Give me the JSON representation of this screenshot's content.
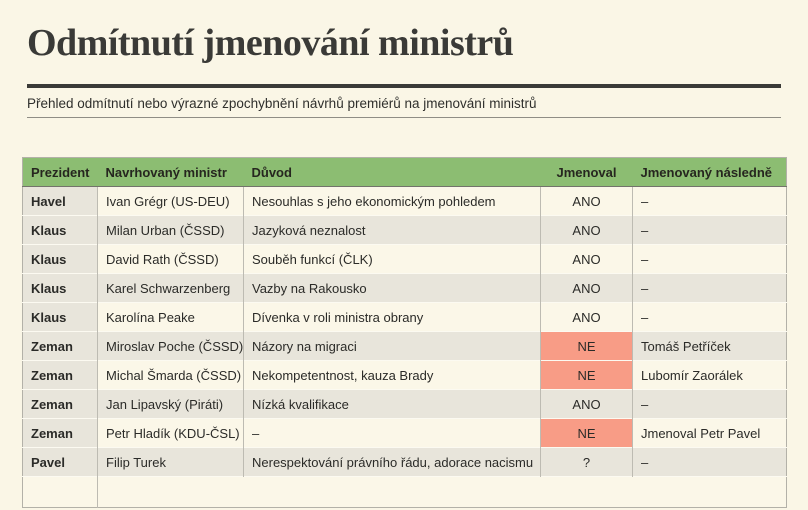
{
  "page": {
    "title": "Odmítnutí jmenování ministrů",
    "subtitle": "Přehled odmítnutí nebo výrazné zpochybnění návrhů premiérů na jmenování ministrů"
  },
  "colors": {
    "background": "#FAF6E6",
    "title_text": "#3A3A37",
    "header_green": "#8CBD72",
    "row_gray": "#E8E5DB",
    "row_cream": "#FBF7E8",
    "refused_red": "#F89C86"
  },
  "table": {
    "columns": [
      "Prezident",
      "Navrhovaný ministr",
      "Důvod",
      "Jmenoval",
      "Jmenovaný následně"
    ],
    "rows": [
      {
        "president": "Havel",
        "minister": "Ivan Grégr (US-DEU)",
        "reason": "Nesouhlas s jeho ekonomickým pohledem",
        "appointed": "ANO",
        "refused": false,
        "successor": "–"
      },
      {
        "president": "Klaus",
        "minister": "Milan Urban (ČSSD)",
        "reason": "Jazyková neznalost",
        "appointed": "ANO",
        "refused": false,
        "successor": "–"
      },
      {
        "president": "Klaus",
        "minister": "David Rath (ČSSD)",
        "reason": "Souběh funkcí (ČLK)",
        "appointed": "ANO",
        "refused": false,
        "successor": "–"
      },
      {
        "president": "Klaus",
        "minister": "Karel Schwarzenberg",
        "reason": "Vazby na Rakousko",
        "appointed": "ANO",
        "refused": false,
        "successor": "–"
      },
      {
        "president": "Klaus",
        "minister": "Karolína Peake",
        "reason": "Dívenka v roli ministra obrany",
        "appointed": "ANO",
        "refused": false,
        "successor": "–"
      },
      {
        "president": "Zeman",
        "minister": "Miroslav Poche (ČSSD)",
        "reason": "Názory na migraci",
        "appointed": "NE",
        "refused": true,
        "successor": "Tomáš Petříček"
      },
      {
        "president": "Zeman",
        "minister": "Michal Šmarda (ČSSD)",
        "reason": "Nekompetentnost, kauza Brady",
        "appointed": "NE",
        "refused": true,
        "successor": "Lubomír Zaorálek"
      },
      {
        "president": "Zeman",
        "minister": "Jan Lipavský (Piráti)",
        "reason": "Nízká kvalifikace",
        "appointed": "ANO",
        "refused": false,
        "successor": "–"
      },
      {
        "president": "Zeman",
        "minister": "Petr Hladík (KDU-ČSL)",
        "reason": "–",
        "appointed": "NE",
        "refused": true,
        "successor": "Jmenoval Petr Pavel"
      },
      {
        "president": "Pavel",
        "minister": "Filip Turek",
        "reason": "Nerespektování právního řádu, adorace nacismu",
        "appointed": "?",
        "refused": false,
        "successor": "–"
      }
    ]
  }
}
